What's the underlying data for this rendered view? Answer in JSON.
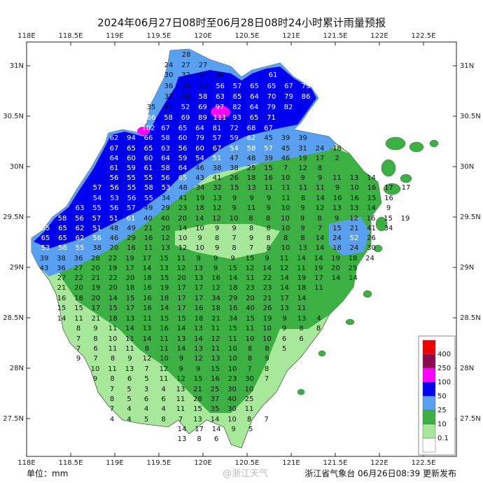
{
  "title": "2024年06月27日08时至06月28日08时24小时累计雨量预报",
  "lon_labels": [
    "118E",
    "118.5E",
    "119E",
    "119.5E",
    "120E",
    "120.5E",
    "121E",
    "121.5E",
    "122E",
    "122.5E"
  ],
  "lat_labels": [
    "31N",
    "30.5N",
    "30N",
    "29.5N",
    "29N",
    "28.5N",
    "28N",
    "27.5N"
  ],
  "legend": {
    "levels": [
      400,
      250,
      100,
      50,
      25,
      10,
      0.1
    ],
    "colors": [
      "#ee0000",
      "#8b0a50",
      "#ff00ff",
      "#0000ee",
      "#5aa0f0",
      "#3cb043",
      "#a8e89a",
      "#ffffff"
    ]
  },
  "unit": "单位：mm",
  "footer": "浙江省气象台 06月26日08:39 更新发布",
  "watermark": "@浙江天气",
  "rainfall_values": [
    [
      28
    ],
    [
      24,
      27,
      27
    ],
    [
      30,
      32,
      41,
      46
    ],
    [
      61
    ],
    [
      36,
      38,
      45,
      56,
      57,
      65,
      65,
      67,
      75
    ],
    [
      37,
      42,
      58,
      63,
      65,
      64,
      70,
      79,
      86
    ],
    [
      35,
      40,
      52,
      69,
      97,
      82,
      64,
      79,
      82
    ],
    [
      66,
      58,
      69,
      89,
      111,
      93,
      65,
      71
    ],
    [
      102,
      67,
      65,
      64,
      81,
      72,
      68,
      67
    ],
    [
      62,
      94,
      66,
      58,
      60,
      79,
      57,
      59,
      62,
      45,
      39,
      39
    ],
    [
      67,
      65,
      65,
      63,
      56,
      60,
      67,
      54,
      58,
      57,
      45,
      31,
      24,
      18
    ],
    [
      64,
      60,
      60,
      64,
      59,
      54,
      51,
      47,
      48,
      39,
      46,
      19,
      17,
      2
    ],
    [
      61,
      59,
      61,
      58,
      64,
      46,
      38,
      38,
      25,
      15,
      7,
      12,
      8
    ],
    [
      56,
      55,
      55,
      56,
      65,
      43,
      41,
      26,
      18,
      16,
      10,
      9,
      9,
      11,
      13,
      14
    ],
    [
      57,
      56,
      55,
      58,
      53,
      48,
      34,
      32,
      15,
      13,
      11,
      11,
      11,
      11,
      9,
      10,
      16,
      17,
      17
    ],
    [
      54,
      53,
      56,
      55,
      34,
      41,
      19,
      13,
      9,
      9,
      9,
      11,
      8,
      14,
      16,
      16,
      15,
      16
    ],
    [
      63,
      55,
      56,
      57,
      49,
      29,
      23,
      18,
      12,
      9,
      11,
      9,
      10,
      9,
      12,
      13,
      13,
      14,
      9
    ],
    [
      58,
      56,
      57,
      51,
      61,
      40,
      40,
      20,
      14,
      12,
      10,
      8,
      8,
      10,
      9,
      8,
      9,
      12,
      16,
      15,
      19
    ],
    [
      65,
      65,
      62,
      51,
      48,
      49,
      21,
      20,
      14,
      10,
      9,
      9,
      8,
      8,
      10,
      9,
      7,
      15,
      21,
      41,
      34
    ],
    [
      65,
      65,
      62,
      56,
      46,
      29,
      16,
      12,
      10,
      9,
      8,
      7,
      9,
      8,
      8,
      8,
      14,
      24,
      52,
      26
    ],
    [
      53,
      56,
      55,
      38,
      20,
      16,
      11,
      13,
      12,
      10,
      9,
      8,
      7,
      8,
      10,
      13,
      14,
      18,
      24,
      30
    ],
    [
      39,
      38,
      36,
      28,
      22,
      19,
      17,
      15,
      11,
      9,
      9,
      9,
      15,
      9,
      11,
      14,
      14,
      19,
      18,
      24
    ],
    [
      43,
      36,
      27,
      20,
      19,
      17,
      14,
      13,
      12,
      13,
      9,
      15,
      12,
      14,
      12,
      11,
      19,
      20,
      25
    ],
    [
      27,
      22,
      21,
      22,
      20,
      18,
      15,
      20,
      13,
      16,
      14,
      11,
      22,
      14,
      19,
      17,
      14,
      14
    ],
    [
      21,
      20,
      19,
      20,
      18,
      16,
      19,
      17,
      17,
      12,
      18,
      23,
      23,
      14,
      18,
      11
    ],
    [
      16,
      18,
      20,
      14,
      15,
      16,
      18,
      17,
      17,
      34,
      29,
      20,
      21,
      17,
      14
    ],
    [
      15,
      15,
      17,
      15,
      17,
      16,
      14,
      17,
      16,
      18,
      16,
      40,
      26,
      13,
      11
    ],
    [
      14,
      11,
      21,
      18,
      13,
      11,
      15,
      15,
      18,
      21,
      34,
      15,
      19,
      9,
      13,
      4
    ],
    [
      8,
      9,
      11,
      14,
      13,
      16,
      14,
      13,
      11,
      15,
      11,
      10,
      9,
      8,
      8
    ],
    [
      7,
      8,
      10,
      11,
      14,
      11,
      13,
      14,
      12,
      11,
      10,
      10,
      6,
      6
    ],
    [
      7,
      6,
      11,
      11,
      8,
      11,
      14,
      13,
      11,
      10,
      8,
      8,
      5
    ],
    [
      9,
      7,
      8,
      9,
      12,
      10,
      9,
      12,
      13,
      10,
      8,
      9
    ],
    [
      10,
      11,
      13,
      7,
      12,
      9,
      9,
      15,
      10,
      7,
      8
    ],
    [
      9,
      8,
      6,
      5,
      11,
      12,
      15,
      16,
      23,
      30,
      7
    ],
    [
      7,
      5,
      3,
      4,
      13,
      21,
      25,
      30,
      10
    ],
    [
      8,
      5,
      6,
      6,
      11,
      28,
      37,
      40,
      25
    ],
    [
      7,
      4,
      4,
      4,
      11,
      15,
      35,
      30,
      11
    ],
    [
      4,
      4,
      5,
      8,
      7,
      13,
      14,
      10,
      8,
      7
    ],
    [
      14,
      17,
      14,
      9,
      5
    ],
    [
      13,
      8,
      6
    ]
  ]
}
